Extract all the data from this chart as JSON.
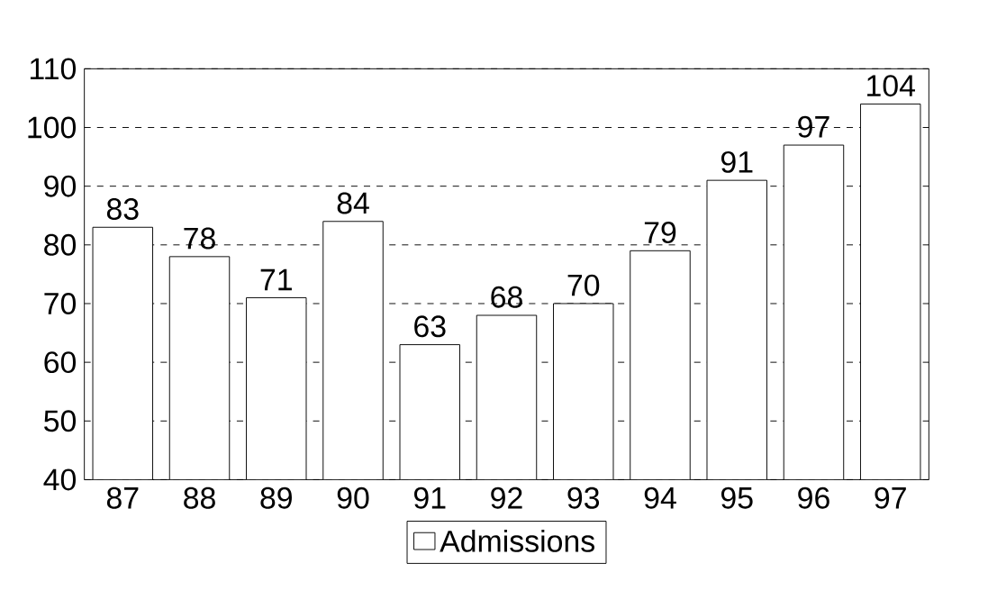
{
  "chart_data": {
    "type": "bar",
    "categories": [
      "87",
      "88",
      "89",
      "90",
      "91",
      "92",
      "93",
      "94",
      "95",
      "96",
      "97"
    ],
    "series": [
      {
        "name": "Admissions",
        "color": "#ffffff",
        "values": [
          83,
          78,
          71,
          84,
          63,
          68,
          70,
          79,
          91,
          97,
          104
        ]
      }
    ],
    "ylim": [
      40,
      110
    ],
    "yticks": [
      40,
      50,
      60,
      70,
      80,
      90,
      100,
      110
    ],
    "grid": "y",
    "legend": "bottom",
    "data_labels": true
  }
}
